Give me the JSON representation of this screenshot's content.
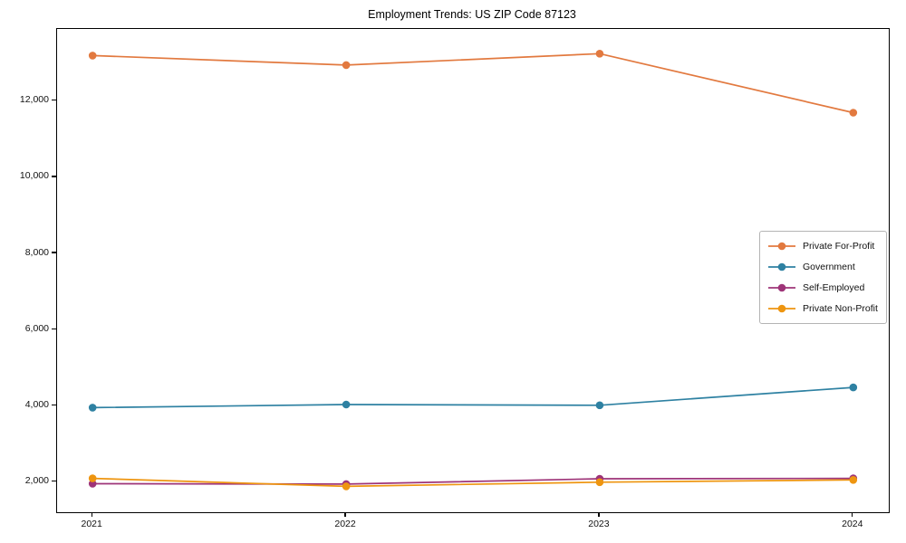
{
  "title": "Employment Trends: US ZIP Code 87123",
  "chart_data": {
    "type": "line",
    "title": "Employment Trends: US ZIP Code 87123",
    "x": [
      2021,
      2022,
      2023,
      2024
    ],
    "x_tick_labels": [
      "2021",
      "2022",
      "2023",
      "2024"
    ],
    "y_ticks": [
      2000,
      4000,
      6000,
      8000,
      10000,
      12000
    ],
    "y_tick_labels": [
      "2,000",
      "4,000",
      "6,000",
      "8,000",
      "10,000",
      "12,000"
    ],
    "xlim": [
      2020.86,
      2024.14
    ],
    "ylim": [
      1200,
      13900
    ],
    "grid": false,
    "legend_position": "center right",
    "series": [
      {
        "name": "Private For-Profit",
        "color": "#e2793f",
        "values": [
          13200,
          12950,
          13250,
          11700
        ]
      },
      {
        "name": "Government",
        "color": "#2e81a2",
        "values": [
          3950,
          4030,
          4010,
          4480
        ]
      },
      {
        "name": "Self-Employed",
        "color": "#9e3478",
        "values": [
          1950,
          1940,
          2080,
          2090
        ]
      },
      {
        "name": "Private Non-Profit",
        "color": "#ee9510",
        "values": [
          2090,
          1880,
          1990,
          2050
        ]
      }
    ]
  }
}
